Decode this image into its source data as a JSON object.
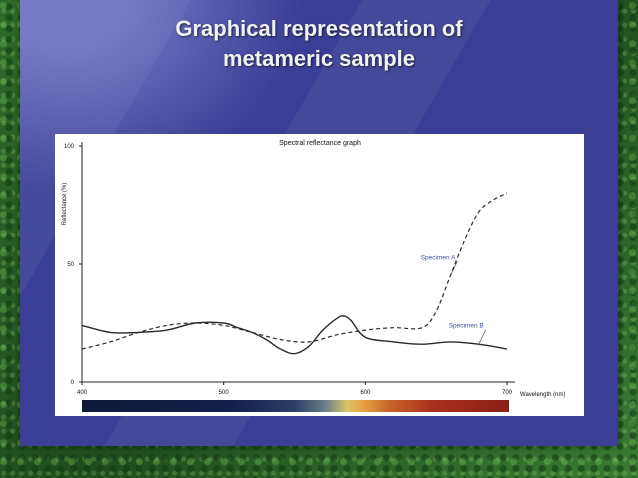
{
  "slide": {
    "title_line1": "Graphical representation of",
    "title_line2": "metameric sample"
  },
  "chart_data": {
    "type": "line",
    "title": "Spectral reflectance graph",
    "xlabel": "Wavelength (nm)",
    "ylabel": "Reflectance (%)",
    "xlim": [
      400,
      700
    ],
    "ylim": [
      0,
      100
    ],
    "x_ticks": [
      "400",
      "500",
      "600",
      "700"
    ],
    "y_ticks": [
      "0",
      "50",
      "100"
    ],
    "grid": false,
    "spectrum_bar": true,
    "series": [
      {
        "name": "Specimen A",
        "style": "dashed",
        "color": "#2a2a2a",
        "x": [
          400,
          420,
          440,
          460,
          480,
          500,
          520,
          540,
          560,
          580,
          600,
          620,
          640,
          650,
          660,
          670,
          680,
          690,
          700
        ],
        "y": [
          14,
          17,
          21,
          24,
          25,
          24,
          21,
          18,
          17,
          20,
          22,
          23,
          23,
          30,
          45,
          60,
          72,
          77,
          80
        ]
      },
      {
        "name": "Specimen B",
        "style": "solid",
        "color": "#2a2a2a",
        "x": [
          400,
          420,
          440,
          460,
          480,
          500,
          510,
          520,
          530,
          540,
          550,
          560,
          570,
          580,
          585,
          590,
          600,
          620,
          640,
          660,
          680,
          700
        ],
        "y": [
          24,
          21,
          21,
          22,
          25,
          25,
          23,
          21,
          18,
          14,
          12,
          15,
          22,
          27,
          28,
          26,
          19,
          17,
          16,
          17,
          16,
          14
        ]
      }
    ],
    "annotations": [
      {
        "text": "Specimen A",
        "series": "Specimen A",
        "x": 665,
        "y": 52
      },
      {
        "text": "Specimen B",
        "series": "Specimen B",
        "x": 685,
        "y": 23
      }
    ]
  }
}
